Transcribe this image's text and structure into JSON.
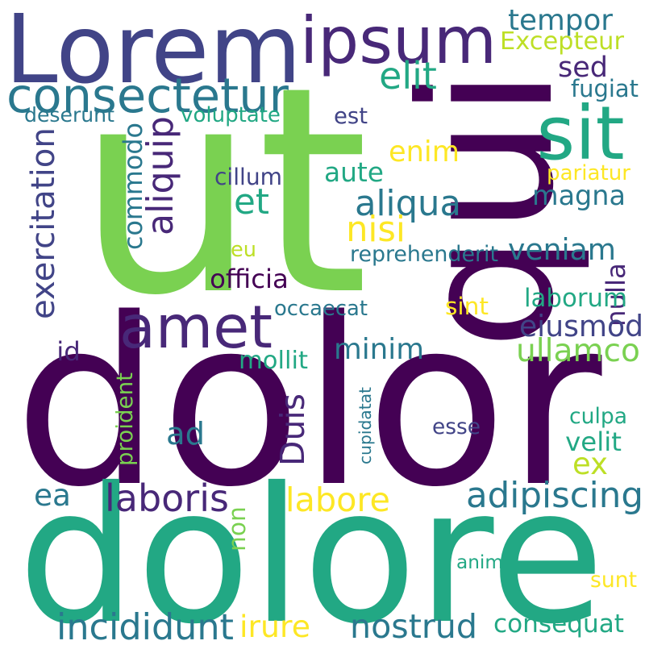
{
  "words": [
    {
      "text": "ut",
      "color": "#7ad151"
    },
    {
      "text": "dolor",
      "color": "#440154"
    },
    {
      "text": "dolore",
      "color": "#22a884"
    },
    {
      "text": "Lorem",
      "color": "#414487"
    },
    {
      "text": "qui",
      "color": "#440154"
    },
    {
      "text": "ipsum",
      "color": "#482878"
    },
    {
      "text": "amet",
      "color": "#482878"
    },
    {
      "text": "consectetur",
      "color": "#2a788e"
    },
    {
      "text": "sit",
      "color": "#22a884"
    },
    {
      "text": "tempor",
      "color": "#2a788e"
    },
    {
      "text": "elit",
      "color": "#22a884"
    },
    {
      "text": "sed",
      "color": "#482878"
    },
    {
      "text": "Excepteur",
      "color": "#bddf26"
    },
    {
      "text": "fugiat",
      "color": "#2a788e"
    },
    {
      "text": "deserunt",
      "color": "#2a788e"
    },
    {
      "text": "voluptate",
      "color": "#22a884"
    },
    {
      "text": "est",
      "color": "#414487"
    },
    {
      "text": "enim",
      "color": "#fde725"
    },
    {
      "text": "commodo",
      "color": "#2a788e"
    },
    {
      "text": "aliquip",
      "color": "#482878"
    },
    {
      "text": "exercitation",
      "color": "#414487"
    },
    {
      "text": "cillum",
      "color": "#414487"
    },
    {
      "text": "aute",
      "color": "#22a884"
    },
    {
      "text": "pariatur",
      "color": "#fde725"
    },
    {
      "text": "et",
      "color": "#22a884"
    },
    {
      "text": "aliqua",
      "color": "#2a788e"
    },
    {
      "text": "magna",
      "color": "#2a788e"
    },
    {
      "text": "nisi",
      "color": "#fde725"
    },
    {
      "text": "veniam",
      "color": "#2a788e"
    },
    {
      "text": "eu",
      "color": "#bddf26"
    },
    {
      "text": "reprehenderit",
      "color": "#2a788e"
    },
    {
      "text": "nulla",
      "color": "#482878"
    },
    {
      "text": "officia",
      "color": "#440154"
    },
    {
      "text": "laborum",
      "color": "#22a884"
    },
    {
      "text": "sint",
      "color": "#fde725"
    },
    {
      "text": "occaecat",
      "color": "#2a788e"
    },
    {
      "text": "eiusmod",
      "color": "#414487"
    },
    {
      "text": "minim",
      "color": "#2a788e"
    },
    {
      "text": "ullamco",
      "color": "#7ad151"
    },
    {
      "text": "id",
      "color": "#482878"
    },
    {
      "text": "mollit",
      "color": "#22a884"
    },
    {
      "text": "proident",
      "color": "#7ad151"
    },
    {
      "text": "Duis",
      "color": "#482878"
    },
    {
      "text": "cupidatat",
      "color": "#2a788e"
    },
    {
      "text": "esse",
      "color": "#414487"
    },
    {
      "text": "culpa",
      "color": "#22a884"
    },
    {
      "text": "ad",
      "color": "#2a788e"
    },
    {
      "text": "velit",
      "color": "#22a884"
    },
    {
      "text": "ex",
      "color": "#bddf26"
    },
    {
      "text": "ea",
      "color": "#2a788e"
    },
    {
      "text": "laboris",
      "color": "#482878"
    },
    {
      "text": "labore",
      "color": "#fde725"
    },
    {
      "text": "adipiscing",
      "color": "#2a788e"
    },
    {
      "text": "non",
      "color": "#7ad151"
    },
    {
      "text": "anim",
      "color": "#22a884"
    },
    {
      "text": "sunt",
      "color": "#fde725"
    },
    {
      "text": "incididunt",
      "color": "#2a788e"
    },
    {
      "text": "irure",
      "color": "#fde725"
    },
    {
      "text": "nostrud",
      "color": "#2a788e"
    },
    {
      "text": "consequat",
      "color": "#22a884"
    }
  ]
}
